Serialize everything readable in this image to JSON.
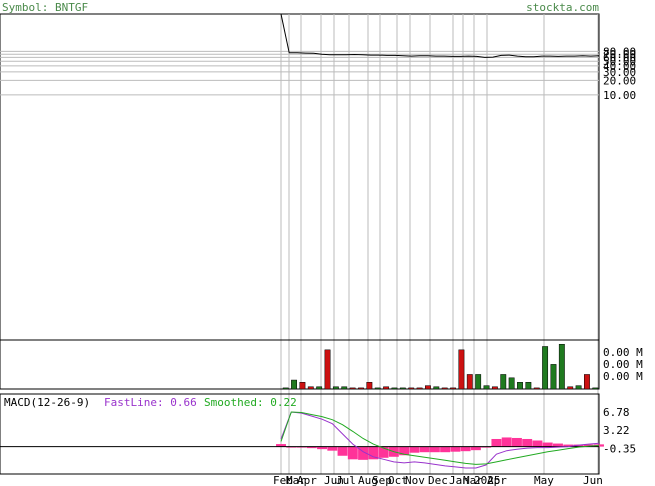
{
  "header": {
    "symbol_text": "Symbol: BNTGF",
    "site_text": "stockta.com"
  },
  "colors": {
    "label_green": "#4a8a4a",
    "price_line": "#000000",
    "grid": "#bbbbbb",
    "vol_up": "#1f7a1f",
    "vol_down": "#cc1111",
    "macd_fast": "#9933cc",
    "macd_smooth": "#22aa22",
    "macd_hist": "#ff3399"
  },
  "chart_data": [
    {
      "type": "line",
      "name": "price",
      "y_scale": "log",
      "y_ticks": [
        "80.00",
        "70.00",
        "60.00",
        "50.00",
        "40.00",
        "30.00",
        "20.00",
        "10.00"
      ],
      "x_labels": [
        "Feb",
        "Mar",
        "Apr",
        "Jun",
        "Jul",
        "Aug",
        "Sep",
        "Oct",
        "Nov",
        "Dec",
        "Jan",
        "Mar",
        "2025",
        "Apr",
        "May",
        "Jun"
      ],
      "y": [
        500,
        75,
        75,
        74,
        73,
        70,
        68,
        68,
        68,
        69,
        68,
        67,
        67,
        66,
        66,
        65,
        64,
        65,
        65,
        64,
        64,
        63,
        63,
        64,
        63,
        60,
        61,
        66,
        67,
        64,
        62,
        62,
        64,
        64,
        63,
        64,
        64,
        65,
        64,
        65
      ]
    },
    {
      "type": "bar",
      "name": "volume",
      "y_ticks": [
        "0.00 M",
        "0.00 M",
        "0.00 M"
      ],
      "values": [
        1,
        8,
        6,
        2,
        2,
        35,
        2,
        2,
        1,
        1,
        6,
        1,
        2,
        1,
        1,
        1,
        1,
        3,
        2,
        1,
        1,
        35,
        13,
        13,
        3,
        2,
        13,
        10,
        6,
        6,
        1,
        38,
        22,
        40,
        2,
        3,
        13,
        1
      ],
      "up": [
        true,
        true,
        false,
        false,
        true,
        false,
        true,
        true,
        false,
        false,
        false,
        true,
        false,
        true,
        true,
        false,
        false,
        false,
        true,
        false,
        false,
        false,
        false,
        true,
        true,
        false,
        true,
        true,
        true,
        true,
        false,
        true,
        true,
        true,
        false,
        true,
        false,
        true
      ]
    },
    {
      "type": "line",
      "name": "macd",
      "title": "MACD(12-26-9)",
      "fast_label": "FastLine: 0.66",
      "smooth_label": "Smoothed: 0.22",
      "y_ticks": [
        "6.78",
        "3.22",
        "-0.35"
      ],
      "fast": [
        1.5,
        6.8,
        6.6,
        6.0,
        5.4,
        4.5,
        2.5,
        0.5,
        -1.0,
        -2.0,
        -2.5,
        -3.0,
        -3.2,
        -3.0,
        -3.2,
        -3.5,
        -3.8,
        -4.0,
        -4.2,
        -4.2,
        -3.6,
        -1.5,
        -0.8,
        -0.5,
        -0.3,
        -0.2,
        -0.2,
        -0.1,
        0.0,
        0.3,
        0.5,
        0.66
      ],
      "smoothed": [
        1.0,
        6.8,
        6.7,
        6.3,
        5.9,
        5.3,
        4.3,
        3.0,
        1.6,
        0.5,
        -0.3,
        -1.0,
        -1.5,
        -1.8,
        -2.1,
        -2.4,
        -2.7,
        -3.0,
        -3.3,
        -3.5,
        -3.4,
        -3.0,
        -2.6,
        -2.2,
        -1.8,
        -1.4,
        -1.0,
        -0.7,
        -0.4,
        -0.1,
        0.1,
        0.22
      ],
      "histogram": [
        0.5,
        0.0,
        -0.1,
        -0.3,
        -0.5,
        -0.8,
        -1.8,
        -2.5,
        -2.6,
        -2.5,
        -2.2,
        -2.0,
        -1.7,
        -1.2,
        -1.1,
        -1.1,
        -1.1,
        -1.0,
        -0.9,
        -0.7,
        -0.2,
        1.5,
        1.8,
        1.7,
        1.5,
        1.2,
        0.8,
        0.6,
        0.4,
        0.4,
        0.4,
        0.44
      ]
    }
  ]
}
